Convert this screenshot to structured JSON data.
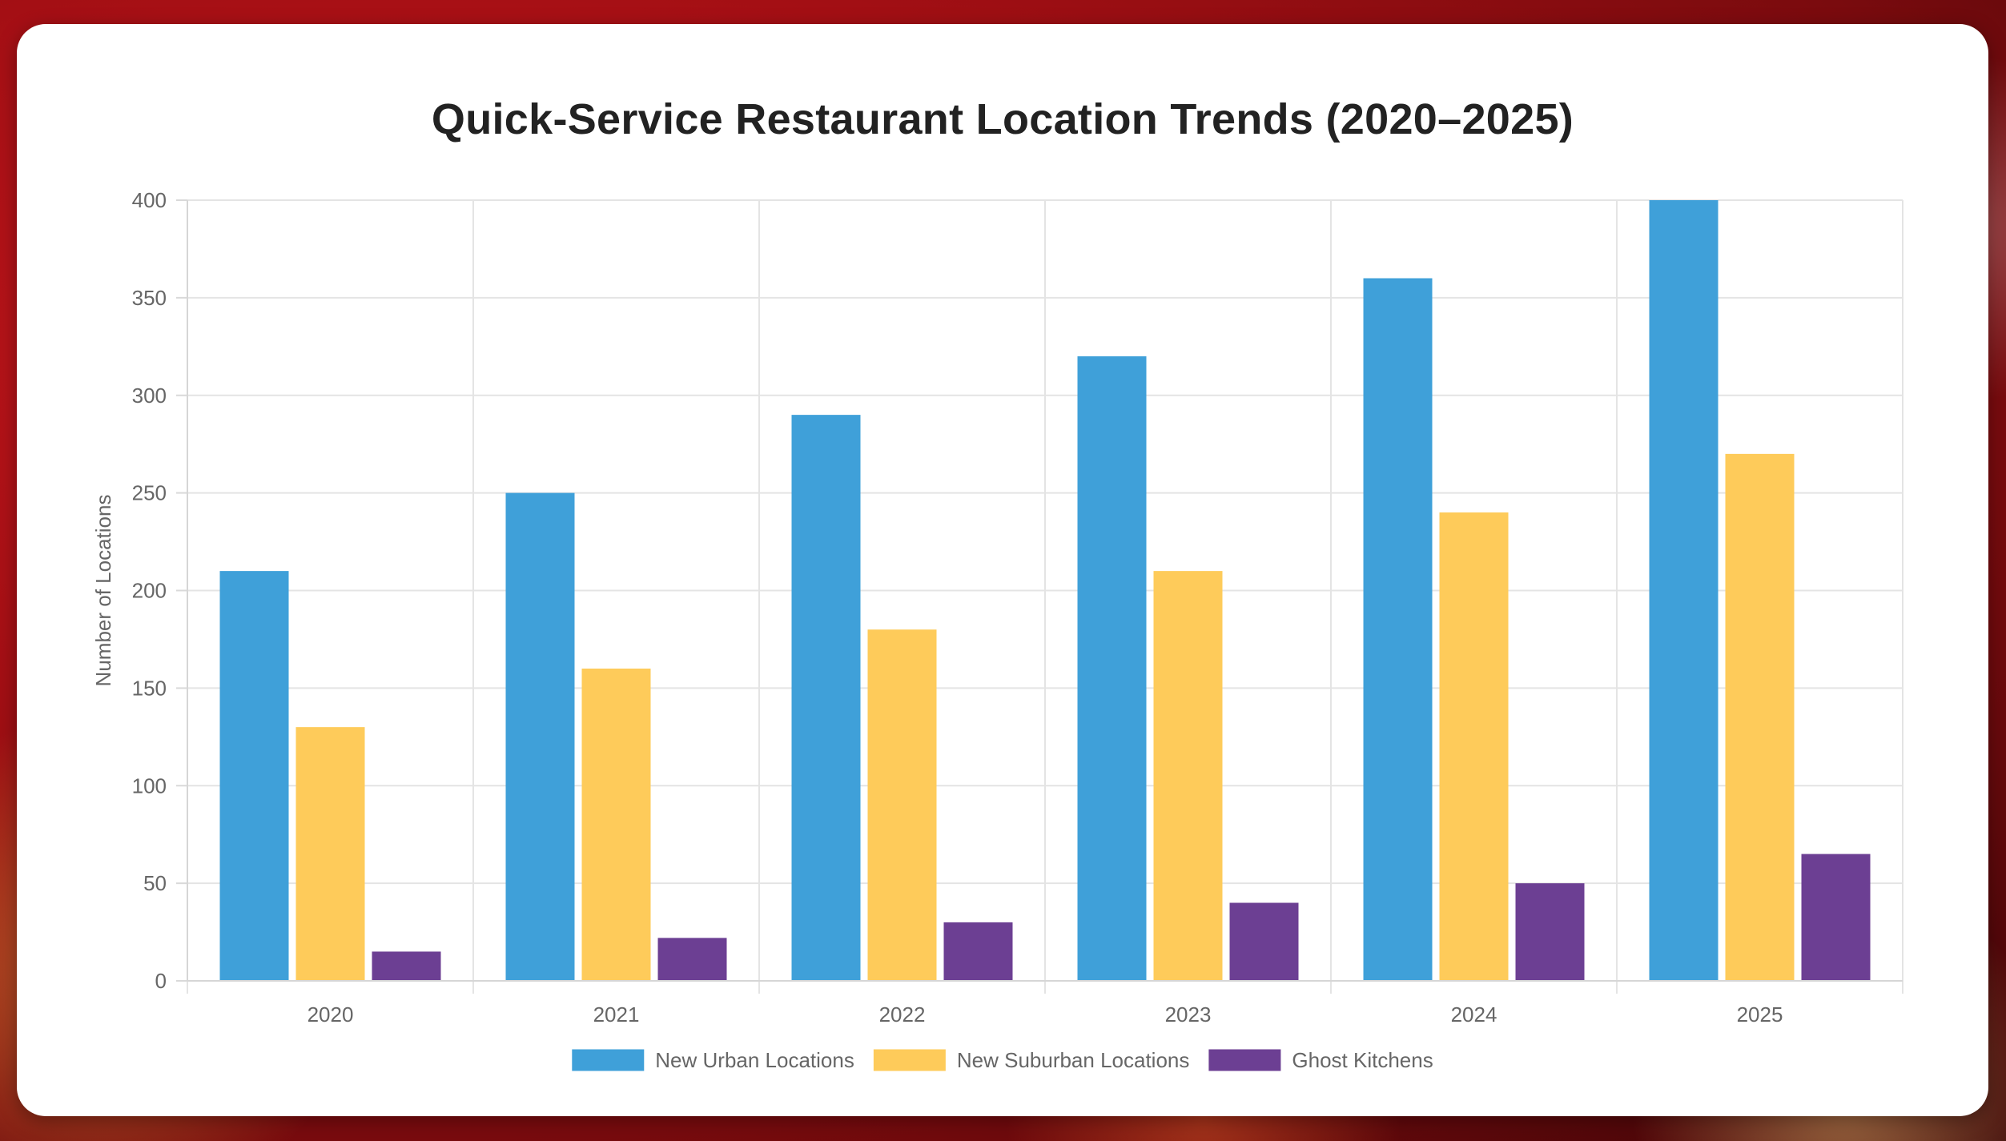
{
  "chart_data": {
    "type": "bar",
    "title": "Quick-Service Restaurant Location Trends (2020–2025)",
    "xlabel": "",
    "ylabel": "Number of Locations",
    "categories": [
      "2020",
      "2021",
      "2022",
      "2023",
      "2024",
      "2025"
    ],
    "series": [
      {
        "name": "New Urban Locations",
        "color": "#3fa0d9",
        "values": [
          210,
          250,
          290,
          320,
          360,
          400
        ]
      },
      {
        "name": "New Suburban Locations",
        "color": "#fecb5a",
        "values": [
          130,
          160,
          180,
          210,
          240,
          270
        ]
      },
      {
        "name": "Ghost Kitchens",
        "color": "#6c3f93",
        "values": [
          15,
          22,
          30,
          40,
          50,
          65
        ]
      }
    ],
    "ylim": [
      0,
      400
    ],
    "yticks": [
      0,
      50,
      100,
      150,
      200,
      250,
      300,
      350,
      400
    ],
    "grid": true,
    "legend_position": "bottom"
  }
}
